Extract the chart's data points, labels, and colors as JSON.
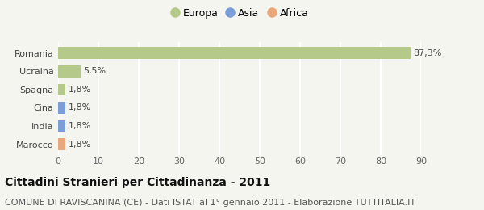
{
  "categories": [
    "Marocco",
    "India",
    "Cina",
    "Spagna",
    "Ucraina",
    "Romania"
  ],
  "values": [
    1.8,
    1.8,
    1.8,
    1.8,
    5.5,
    87.3
  ],
  "labels": [
    "1,8%",
    "1,8%",
    "1,8%",
    "1,8%",
    "5,5%",
    "87,3%"
  ],
  "colors": [
    "#e8a87c",
    "#7b9ed9",
    "#7b9ed9",
    "#b5c98a",
    "#b5c98a",
    "#b5c98a"
  ],
  "legend": [
    {
      "label": "Europa",
      "color": "#b5c98a"
    },
    {
      "label": "Asia",
      "color": "#7b9ed9"
    },
    {
      "label": "Africa",
      "color": "#e8a87c"
    }
  ],
  "xlim": [
    0,
    90
  ],
  "xticks": [
    0,
    10,
    20,
    30,
    40,
    50,
    60,
    70,
    80,
    90
  ],
  "title": "Cittadini Stranieri per Cittadinanza - 2011",
  "subtitle": "COMUNE DI RAVISCANINA (CE) - Dati ISTAT al 1° gennaio 2011 - Elaborazione TUTTITALIA.IT",
  "background_color": "#f5f5ef",
  "grid_color": "#ffffff",
  "title_fontsize": 10,
  "subtitle_fontsize": 8,
  "tick_fontsize": 8,
  "label_fontsize": 8
}
